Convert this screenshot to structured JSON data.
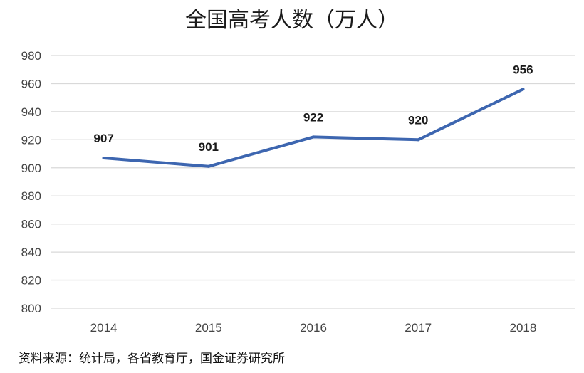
{
  "chart_data": {
    "type": "line",
    "title": "全国高考人数（万人）",
    "xlabel": "",
    "ylabel": "",
    "categories": [
      "2014",
      "2015",
      "2016",
      "2017",
      "2018"
    ],
    "series": [
      {
        "values": [
          907,
          901,
          922,
          920,
          956
        ],
        "color": "#3d66b0"
      }
    ],
    "data_labels": [
      "907",
      "901",
      "922",
      "920",
      "956"
    ],
    "y_ticks": [
      800,
      820,
      840,
      860,
      880,
      900,
      920,
      940,
      960,
      980
    ],
    "ylim": [
      800,
      980
    ],
    "grid": true,
    "legend": "none"
  },
  "source_note": "资料来源：统计局，各省教育厅，国金证券研究所"
}
